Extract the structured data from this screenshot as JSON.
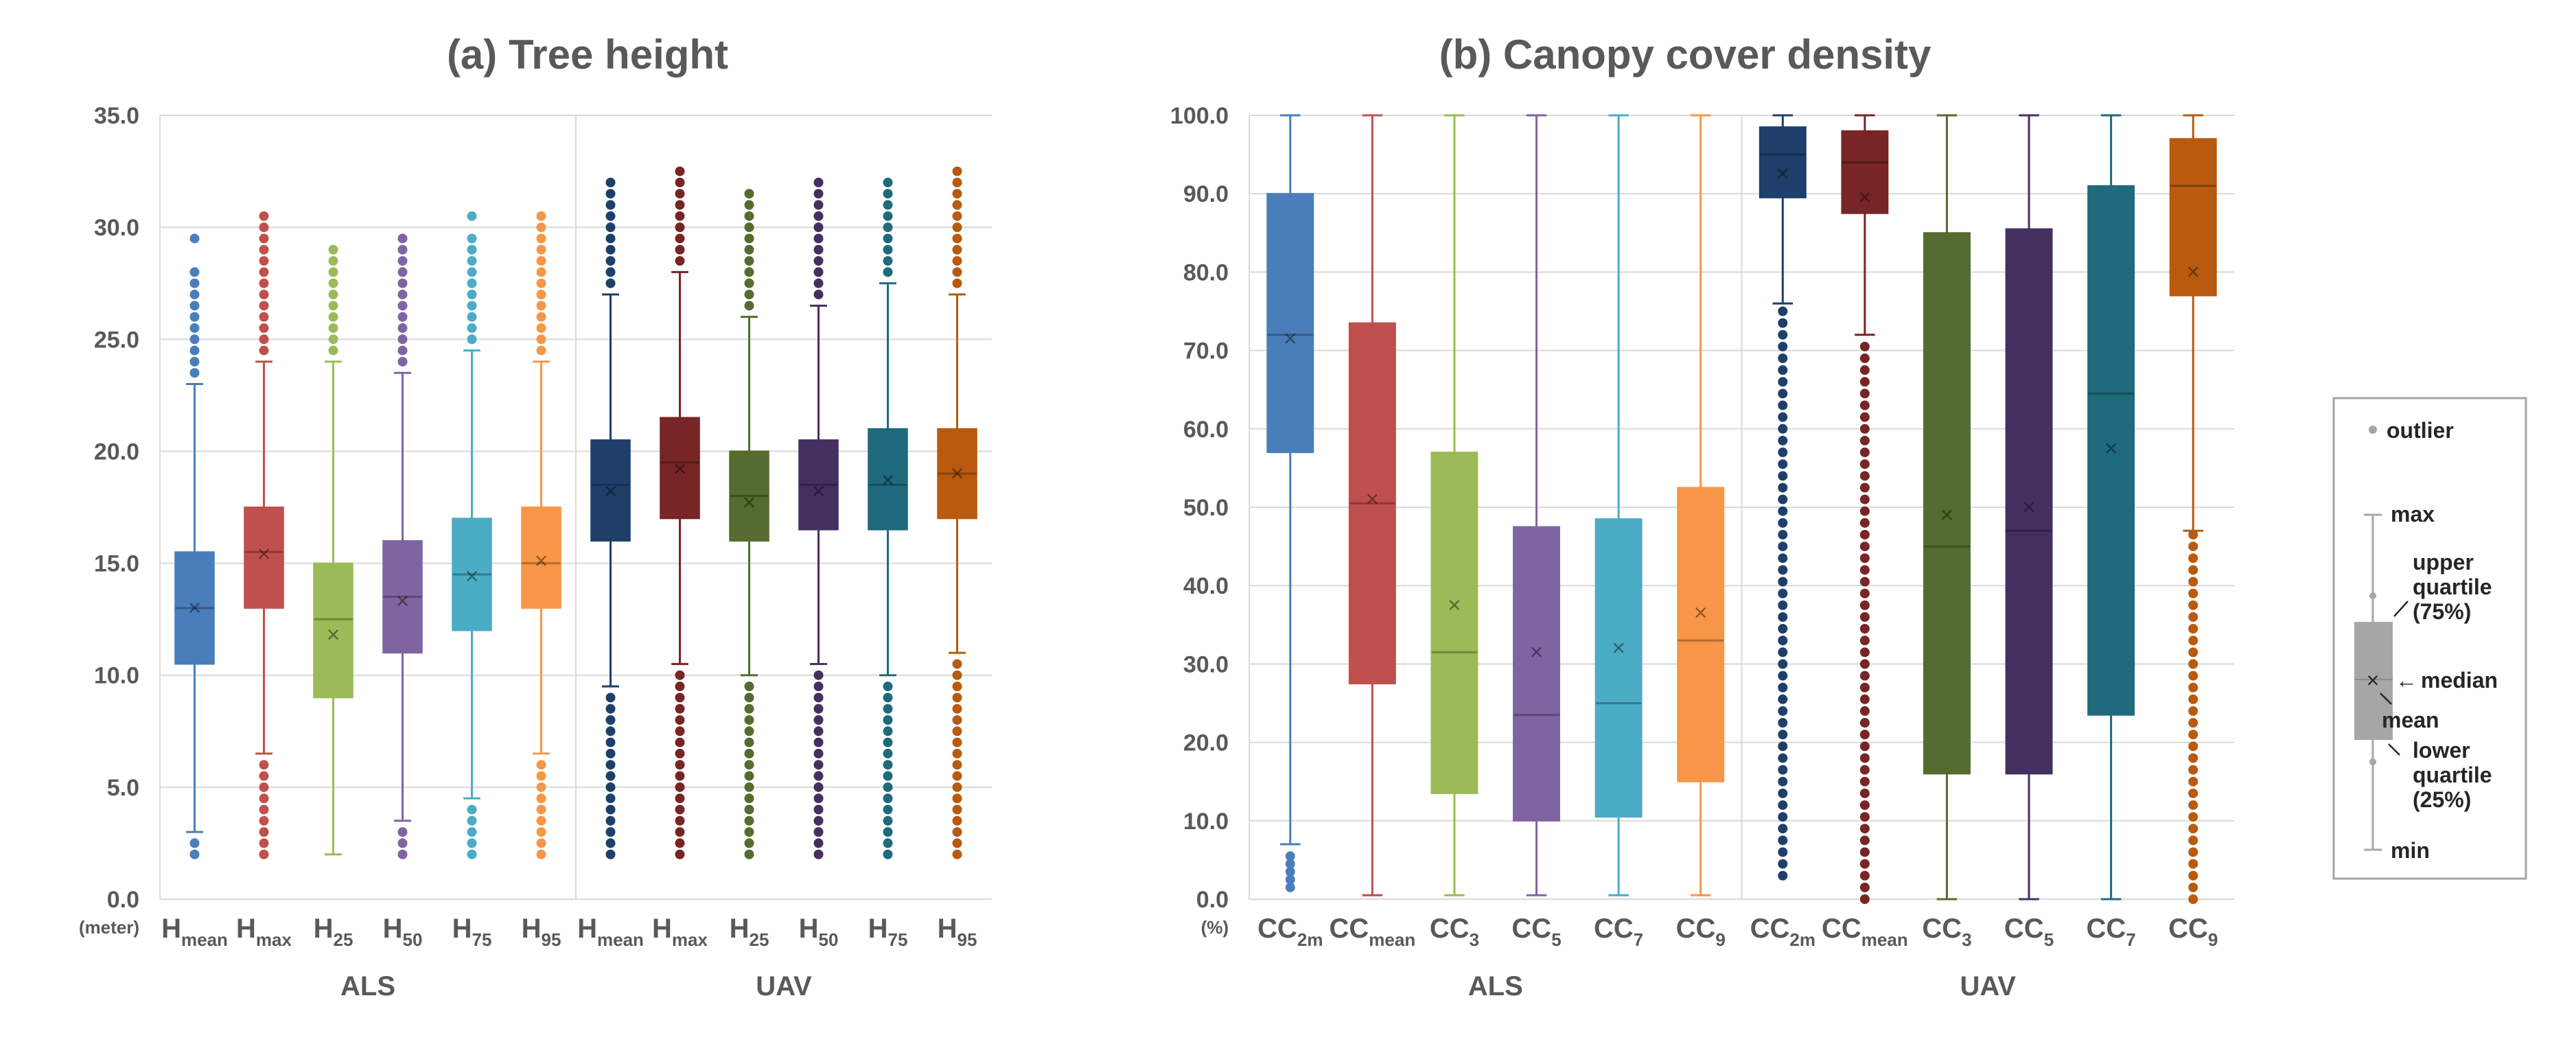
{
  "chart_data": [
    {
      "type": "box",
      "title": "(a) Tree height",
      "ylim": [
        0,
        35
      ],
      "y_ticks": [
        "0.0",
        "5.0",
        "10.0",
        "15.0",
        "20.0",
        "25.0",
        "30.0",
        "35.0"
      ],
      "y_unit": "(meter)",
      "grid": true,
      "groups": [
        {
          "label": "ALS",
          "boxes": [
            {
              "base": "H",
              "sub": "mean",
              "color": "#4a7ebb",
              "whisker_low": 3.0,
              "q1": 10.5,
              "median": 13.0,
              "q3": 15.5,
              "whisker_high": 23.0,
              "mean": 13.0,
              "outliers_low": [
                2.0,
                2.5
              ],
              "outliers_high": [
                23.5,
                24.0,
                24.5,
                25.0,
                25.5,
                26.0,
                26.5,
                27.0,
                27.5,
                28.0,
                29.5
              ]
            },
            {
              "base": "H",
              "sub": "max",
              "color": "#c0504d",
              "whisker_low": 6.5,
              "q1": 13.0,
              "median": 15.5,
              "q3": 17.5,
              "whisker_high": 24.0,
              "mean": 15.4,
              "outliers_low": [
                2.0,
                2.5,
                3.0,
                3.5,
                4.0,
                4.5,
                5.0,
                5.5,
                6.0
              ],
              "outliers_high": [
                24.5,
                25.0,
                25.5,
                26.0,
                26.5,
                27.0,
                27.5,
                28.0,
                28.5,
                29.0,
                29.5,
                30.0,
                30.5
              ]
            },
            {
              "base": "H",
              "sub": "25",
              "color": "#9bbb59",
              "whisker_low": 2.0,
              "q1": 9.0,
              "median": 12.5,
              "q3": 15.0,
              "whisker_high": 24.0,
              "mean": 11.8,
              "outliers_low": [],
              "outliers_high": [
                24.5,
                25.0,
                25.5,
                26.0,
                26.5,
                27.0,
                27.5,
                28.0,
                28.5,
                29.0
              ]
            },
            {
              "base": "H",
              "sub": "50",
              "color": "#8064a2",
              "whisker_low": 3.5,
              "q1": 11.0,
              "median": 13.5,
              "q3": 16.0,
              "whisker_high": 23.5,
              "mean": 13.3,
              "outliers_low": [
                2.0,
                2.5,
                3.0
              ],
              "outliers_high": [
                24.0,
                24.5,
                25.0,
                25.5,
                26.0,
                26.5,
                27.0,
                27.5,
                28.0,
                28.5,
                29.0,
                29.5
              ]
            },
            {
              "base": "H",
              "sub": "75",
              "color": "#4bacc6",
              "whisker_low": 4.5,
              "q1": 12.0,
              "median": 14.5,
              "q3": 17.0,
              "whisker_high": 24.5,
              "mean": 14.4,
              "outliers_low": [
                2.0,
                2.5,
                3.0,
                3.5,
                4.0
              ],
              "outliers_high": [
                25.0,
                25.5,
                26.0,
                26.5,
                27.0,
                27.5,
                28.0,
                28.5,
                29.0,
                29.5,
                30.5
              ]
            },
            {
              "base": "H",
              "sub": "95",
              "color": "#f79646",
              "whisker_low": 6.5,
              "q1": 13.0,
              "median": 15.0,
              "q3": 17.5,
              "whisker_high": 24.0,
              "mean": 15.1,
              "outliers_low": [
                2.0,
                2.5,
                3.0,
                3.5,
                4.0,
                4.5,
                5.0,
                5.5,
                6.0
              ],
              "outliers_high": [
                24.5,
                25.0,
                25.5,
                26.0,
                26.5,
                27.0,
                27.5,
                28.0,
                28.5,
                29.0,
                29.5,
                30.0,
                30.5
              ]
            }
          ]
        },
        {
          "label": "UAV",
          "boxes": [
            {
              "base": "H",
              "sub": "mean",
              "color": "#1f3f6b",
              "whisker_low": 9.5,
              "q1": 16.0,
              "median": 18.5,
              "q3": 20.5,
              "whisker_high": 27.0,
              "mean": 18.2,
              "outliers_low": [
                2.0,
                2.5,
                3.0,
                3.5,
                4.0,
                4.5,
                5.0,
                5.5,
                6.0,
                6.5,
                7.0,
                7.5,
                8.0,
                8.5,
                9.0
              ],
              "outliers_high": [
                27.5,
                28.0,
                28.5,
                29.0,
                29.5,
                30.0,
                30.5,
                31.0,
                31.5,
                32.0
              ]
            },
            {
              "base": "H",
              "sub": "max",
              "color": "#772525",
              "whisker_low": 10.5,
              "q1": 17.0,
              "median": 19.5,
              "q3": 21.5,
              "whisker_high": 28.0,
              "mean": 19.2,
              "outliers_low": [
                2.0,
                2.5,
                3.0,
                3.5,
                4.0,
                4.5,
                5.0,
                5.5,
                6.0,
                6.5,
                7.0,
                7.5,
                8.0,
                8.5,
                9.0,
                9.5,
                10.0
              ],
              "outliers_high": [
                28.5,
                29.0,
                29.5,
                30.0,
                30.5,
                31.0,
                31.5,
                32.0,
                32.5
              ]
            },
            {
              "base": "H",
              "sub": "25",
              "color": "#556b2f",
              "whisker_low": 10.0,
              "q1": 16.0,
              "median": 18.0,
              "q3": 20.0,
              "whisker_high": 26.0,
              "mean": 17.7,
              "outliers_low": [
                2.0,
                2.5,
                3.0,
                3.5,
                4.0,
                4.5,
                5.0,
                5.5,
                6.0,
                6.5,
                7.0,
                7.5,
                8.0,
                8.5,
                9.0,
                9.5
              ],
              "outliers_high": [
                26.5,
                27.0,
                27.5,
                28.0,
                28.5,
                29.0,
                29.5,
                30.0,
                30.5,
                31.0,
                31.5
              ]
            },
            {
              "base": "H",
              "sub": "50",
              "color": "#443060",
              "whisker_low": 10.5,
              "q1": 16.5,
              "median": 18.5,
              "q3": 20.5,
              "whisker_high": 26.5,
              "mean": 18.2,
              "outliers_low": [
                2.0,
                2.5,
                3.0,
                3.5,
                4.0,
                4.5,
                5.0,
                5.5,
                6.0,
                6.5,
                7.0,
                7.5,
                8.0,
                8.5,
                9.0,
                9.5,
                10.0
              ],
              "outliers_high": [
                27.0,
                27.5,
                28.0,
                28.5,
                29.0,
                29.5,
                30.0,
                30.5,
                31.0,
                31.5,
                32.0
              ]
            },
            {
              "base": "H",
              "sub": "75",
              "color": "#1f6a7d",
              "whisker_low": 10.0,
              "q1": 16.5,
              "median": 18.5,
              "q3": 21.0,
              "whisker_high": 27.5,
              "mean": 18.7,
              "outliers_low": [
                2.0,
                2.5,
                3.0,
                3.5,
                4.0,
                4.5,
                5.0,
                5.5,
                6.0,
                6.5,
                7.0,
                7.5,
                8.0,
                8.5,
                9.0,
                9.5
              ],
              "outliers_high": [
                28.0,
                28.5,
                29.0,
                29.5,
                30.0,
                30.5,
                31.0,
                31.5,
                32.0
              ]
            },
            {
              "base": "H",
              "sub": "95",
              "color": "#b95a0e",
              "whisker_low": 11.0,
              "q1": 17.0,
              "median": 19.0,
              "q3": 21.0,
              "whisker_high": 27.0,
              "mean": 19.0,
              "outliers_low": [
                2.0,
                2.5,
                3.0,
                3.5,
                4.0,
                4.5,
                5.0,
                5.5,
                6.0,
                6.5,
                7.0,
                7.5,
                8.0,
                8.5,
                9.0,
                9.5,
                10.0,
                10.5
              ],
              "outliers_high": [
                27.5,
                28.0,
                28.5,
                29.0,
                29.5,
                30.0,
                30.5,
                31.0,
                31.5,
                32.0,
                32.5
              ]
            }
          ]
        }
      ]
    },
    {
      "type": "box",
      "title": "(b) Canopy cover density",
      "ylim": [
        0,
        100
      ],
      "y_ticks": [
        "0.0",
        "10.0",
        "20.0",
        "30.0",
        "40.0",
        "50.0",
        "60.0",
        "70.0",
        "80.0",
        "90.0",
        "100.0"
      ],
      "y_unit": "(%)",
      "grid": true,
      "groups": [
        {
          "label": "ALS",
          "boxes": [
            {
              "base": "CC",
              "sub": "2m",
              "color": "#4a7ebb",
              "whisker_low": 7.0,
              "q1": 57.0,
              "median": 72.0,
              "q3": 90.0,
              "whisker_high": 100.0,
              "mean": 71.5,
              "outliers_low": [
                1.5,
                2.5,
                3.5,
                4.5,
                5.5
              ],
              "outliers_high": []
            },
            {
              "base": "CC",
              "sub": "mean",
              "color": "#c0504d",
              "whisker_low": 0.5,
              "q1": 27.5,
              "median": 50.5,
              "q3": 73.5,
              "whisker_high": 100.0,
              "mean": 51.0,
              "outliers_low": [],
              "outliers_high": []
            },
            {
              "base": "CC",
              "sub": "3",
              "color": "#9bbb59",
              "whisker_low": 0.5,
              "q1": 13.5,
              "median": 31.5,
              "q3": 57.0,
              "whisker_high": 100.0,
              "mean": 37.5,
              "outliers_low": [],
              "outliers_high": []
            },
            {
              "base": "CC",
              "sub": "5",
              "color": "#8064a2",
              "whisker_low": 0.5,
              "q1": 10.0,
              "median": 23.5,
              "q3": 47.5,
              "whisker_high": 100.0,
              "mean": 31.5,
              "outliers_low": [],
              "outliers_high": []
            },
            {
              "base": "CC",
              "sub": "7",
              "color": "#4bacc6",
              "whisker_low": 0.5,
              "q1": 10.5,
              "median": 25.0,
              "q3": 48.5,
              "whisker_high": 100.0,
              "mean": 32.0,
              "outliers_low": [],
              "outliers_high": []
            },
            {
              "base": "CC",
              "sub": "9",
              "color": "#f79646",
              "whisker_low": 0.5,
              "q1": 15.0,
              "median": 33.0,
              "q3": 52.5,
              "whisker_high": 100.0,
              "mean": 36.5,
              "outliers_low": [],
              "outliers_high": []
            }
          ]
        },
        {
          "label": "UAV",
          "boxes": [
            {
              "base": "CC",
              "sub": "2m",
              "color": "#1f3f6b",
              "whisker_low": 76.0,
              "q1": 89.5,
              "median": 95.0,
              "q3": 98.5,
              "whisker_high": 100.0,
              "mean": 92.5,
              "outliers_low": [
                3.0,
                4.5,
                6.0,
                7.5,
                9.0,
                10.5,
                12.0,
                13.5,
                15.0,
                16.5,
                18.0,
                19.5,
                21.0,
                22.5,
                24.0,
                25.5,
                27.0,
                28.5,
                30.0,
                31.5,
                33.0,
                34.5,
                36.0,
                37.5,
                39.0,
                40.5,
                42.0,
                43.5,
                45.0,
                46.5,
                48.0,
                49.5,
                51.0,
                52.5,
                54.0,
                55.5,
                57.0,
                58.5,
                60.0,
                61.5,
                63.0,
                64.5,
                66.0,
                67.5,
                69.0,
                70.5,
                72.0,
                73.5,
                75.0
              ],
              "outliers_high": []
            },
            {
              "base": "CC",
              "sub": "mean",
              "color": "#772525",
              "whisker_low": 72.0,
              "q1": 87.5,
              "median": 94.0,
              "q3": 98.0,
              "whisker_high": 100.0,
              "mean": 89.5,
              "outliers_low": [
                0.0,
                1.5,
                3.0,
                4.5,
                6.0,
                7.5,
                9.0,
                10.5,
                12.0,
                13.5,
                15.0,
                16.5,
                18.0,
                19.5,
                21.0,
                22.5,
                24.0,
                25.5,
                27.0,
                28.5,
                30.0,
                31.5,
                33.0,
                34.5,
                36.0,
                37.5,
                39.0,
                40.5,
                42.0,
                43.5,
                45.0,
                46.5,
                48.0,
                49.5,
                51.0,
                52.5,
                54.0,
                55.5,
                57.0,
                58.5,
                60.0,
                61.5,
                63.0,
                64.5,
                66.0,
                67.5,
                69.0,
                70.5
              ],
              "outliers_high": []
            },
            {
              "base": "CC",
              "sub": "3",
              "color": "#556b2f",
              "whisker_low": 0.0,
              "q1": 16.0,
              "median": 45.0,
              "q3": 85.0,
              "whisker_high": 100.0,
              "mean": 49.0,
              "outliers_low": [],
              "outliers_high": []
            },
            {
              "base": "CC",
              "sub": "5",
              "color": "#443060",
              "whisker_low": 0.0,
              "q1": 16.0,
              "median": 47.0,
              "q3": 85.5,
              "whisker_high": 100.0,
              "mean": 50.0,
              "outliers_low": [],
              "outliers_high": []
            },
            {
              "base": "CC",
              "sub": "7",
              "color": "#1f6a7d",
              "whisker_low": 0.0,
              "q1": 23.5,
              "median": 64.5,
              "q3": 91.0,
              "whisker_high": 100.0,
              "mean": 57.5,
              "outliers_low": [],
              "outliers_high": []
            },
            {
              "base": "CC",
              "sub": "9",
              "color": "#b95a0e",
              "whisker_low": 47.0,
              "q1": 77.0,
              "median": 91.0,
              "q3": 97.0,
              "whisker_high": 100.0,
              "mean": 80.0,
              "outliers_low": [
                0.0,
                1.5,
                3.0,
                4.5,
                6.0,
                7.5,
                9.0,
                10.5,
                12.0,
                13.5,
                15.0,
                16.5,
                18.0,
                19.5,
                21.0,
                22.5,
                24.0,
                25.5,
                27.0,
                28.5,
                30.0,
                31.5,
                33.0,
                34.5,
                36.0,
                37.5,
                39.0,
                40.5,
                42.0,
                43.5,
                45.0,
                46.5
              ],
              "outliers_high": []
            }
          ]
        }
      ]
    }
  ],
  "legend": {
    "outlier": "outlier",
    "max": "max",
    "upper_quartile_line1": "upper",
    "upper_quartile_line2": "quartile",
    "upper_quartile_line3": "(75%)",
    "median": "median",
    "median_arrow": "←",
    "mean": "mean",
    "lower_quartile_line1": "lower",
    "lower_quartile_line2": "quartile",
    "lower_quartile_line3": "(25%)",
    "min": "min"
  }
}
